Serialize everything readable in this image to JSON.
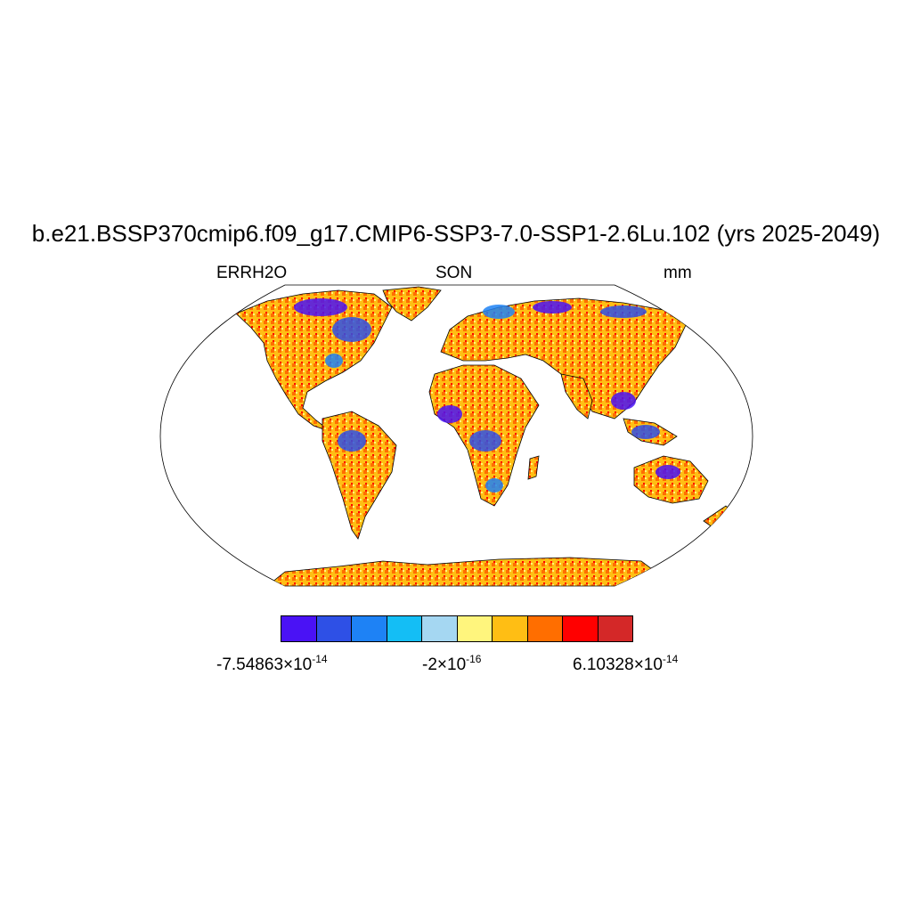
{
  "header": {
    "title": "b.e21.BSSP370cmip6.f09_g17.CMIP6-SSP3-7.0-SSP1-2.6Lu.102 (yrs 2025-2049)",
    "left_label": "ERRH2O",
    "center_label": "SON",
    "right_label": "mm"
  },
  "colorbar": {
    "colors": [
      "#4a12f5",
      "#2e50e6",
      "#1e82f5",
      "#14bef5",
      "#a5d7f2",
      "#fff57d",
      "#ffbe14",
      "#ff6e00",
      "#ff0000",
      "#d42828"
    ],
    "min_label": {
      "mantissa": "-7.54863",
      "base": "×10",
      "exponent": "-14"
    },
    "mid_label": {
      "mantissa": "-2",
      "base": "×10",
      "exponent": "-16"
    },
    "max_label": {
      "mantissa": "6.10328",
      "base": "×10",
      "exponent": "-14"
    }
  },
  "map": {
    "projection": "Robinson",
    "land_fill_colors": [
      "#ffbe14",
      "#ff6e00",
      "#fff57d",
      "#ff0000",
      "#4a12f5",
      "#2e50e6",
      "#1e82f5"
    ],
    "ocean_color": "#ffffff"
  }
}
